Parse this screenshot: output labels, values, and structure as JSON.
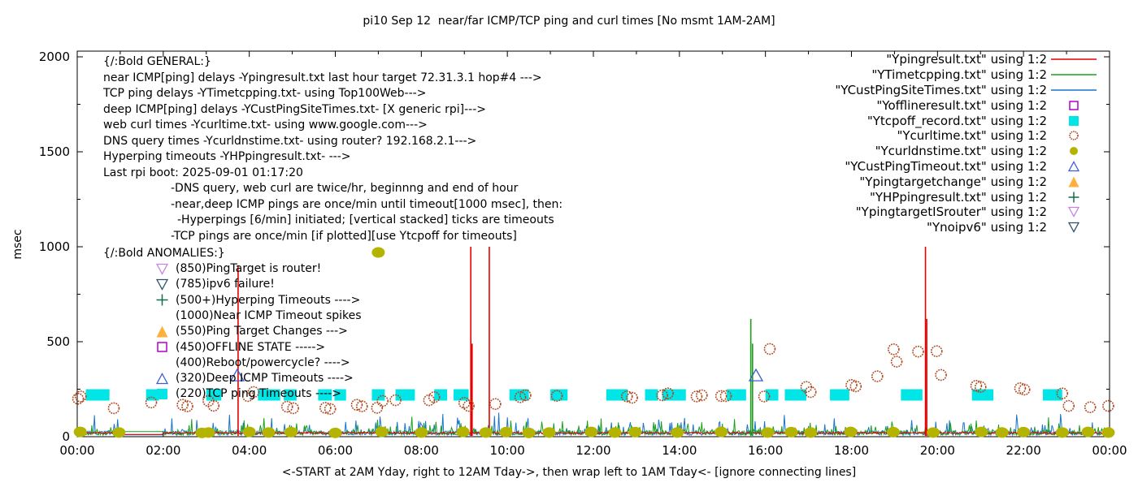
{
  "title": "pi10 Sep 12  near/far ICMP/TCP ping and curl times [No msmt 1AM-2AM]",
  "y_axis": {
    "label": "msec",
    "ticks": [
      0,
      500,
      1000,
      1500,
      2000
    ],
    "minor_step": 250,
    "max": 2000
  },
  "x_axis": {
    "label": "<-START at 2AM Yday, right to 12AM Tday->, then wrap left to 1AM Tday<- [ignore connecting lines]",
    "tick_labels": [
      "00:00",
      "02:00",
      "04:00",
      "06:00",
      "08:00",
      "10:00",
      "12:00",
      "14:00",
      "16:00",
      "18:00",
      "20:00",
      "22:00",
      "00:00"
    ],
    "hours": 24
  },
  "colors": {
    "near_icmp": "#e60000",
    "tcp_ping": "#1ca01c",
    "deep_icmp": "#1874cd",
    "offline": "#b000c8",
    "tcpoff": "#00e6e6",
    "curl": "#b0471d",
    "dns": "#b4b400",
    "deep_timeout": "#3c5ed2",
    "target_change": "#fdb13c",
    "hyperping": "#166b4a",
    "is_router": "#c382ea",
    "noipv6": "#30506a",
    "axis": "#000000"
  },
  "legend": [
    {
      "label": "\"Ypingresult.txt\" using 1:2",
      "marker": "line",
      "color": "#e60000"
    },
    {
      "label": "\"YTimetcpping.txt\" using 1:2",
      "marker": "line",
      "color": "#1ca01c"
    },
    {
      "label": "\"YCustPingSiteTimes.txt\" using 1:2",
      "marker": "line",
      "color": "#1874cd"
    },
    {
      "label": "\"Yofflineresult.txt\" using 1:2",
      "marker": "square-open",
      "color": "#b000c8"
    },
    {
      "label": "\"Ytcpoff_record.txt\" using 1:2",
      "marker": "square-filled",
      "color": "#00e6e6"
    },
    {
      "label": "\"Ycurltime.txt\" using 1:2",
      "marker": "circle-open",
      "color": "#b0471d"
    },
    {
      "label": "\"Ycurldnstime.txt\" using 1:2",
      "marker": "circle-filled",
      "color": "#b4b400"
    },
    {
      "label": "\"YCustPingTimeout.txt\" using 1:2",
      "marker": "tri-up-open",
      "color": "#3c5ed2"
    },
    {
      "label": "\"Ypingtargetchange\" using 1:2",
      "marker": "tri-up-filled",
      "color": "#fdb13c"
    },
    {
      "label": "\"YHPpingresult.txt\" using 1:2",
      "marker": "plus",
      "color": "#166b4a"
    },
    {
      "label": "\"YpingtargetISrouter\" using 1:2",
      "marker": "tri-down-open",
      "color": "#c382ea"
    },
    {
      "label": "\"Ynoipv6\" using 1:2",
      "marker": "tri-down-open",
      "color": "#30506a"
    }
  ],
  "general_block": {
    "lines": [
      {
        "text": "{/:Bold GENERAL:}",
        "indent": 0
      },
      {
        "text": "near ICMP[ping] delays -Ypingresult.txt last hour target 72.31.3.1 hop#4 --->",
        "indent": 0
      },
      {
        "text": "TCP ping delays -YTimetcpping.txt- using Top100Web--->",
        "indent": 0
      },
      {
        "text": "deep ICMP[ping] delays -YCustPingSiteTimes.txt- [X generic rpi]--->",
        "indent": 0
      },
      {
        "text": "web curl times -Ycurltime.txt- using www.google.com--->",
        "indent": 0
      },
      {
        "text": "DNS query times -Ycurldnstime.txt- using router? 192.168.2.1--->",
        "indent": 0
      },
      {
        "text": "Hyperping timeouts -YHPpingresult.txt- --->",
        "indent": 0
      },
      {
        "text": "Last rpi boot: 2025-09-01 01:17:20",
        "indent": 0
      },
      {
        "text": "-DNS query, web curl are twice/hr, beginnng and end of hour",
        "indent": 1
      },
      {
        "text": "-near,deep ICMP pings are once/min until timeout[1000 msec], then:",
        "indent": 1
      },
      {
        "text": "-Hyperpings [6/min] initiated; [vertical stacked] ticks are timeouts",
        "indent": 2
      },
      {
        "text": "-TCP pings are once/min [if plotted][use Ytcpoff for timeouts]",
        "indent": 1
      }
    ]
  },
  "anomalies_block": {
    "header": "{/:Bold ANOMALIES:}",
    "lines": [
      {
        "marker": "tri-down-open",
        "color": "#c382ea",
        "text": "(850)PingTarget is router!"
      },
      {
        "marker": "tri-down-open",
        "color": "#30506a",
        "text": "(785)ipv6 failure!"
      },
      {
        "marker": "plus",
        "color": "#166b4a",
        "text": "(500+)Hyperping Timeouts ---->"
      },
      {
        "marker": null,
        "color": null,
        "text": "(1000)Near ICMP Timeout spikes"
      },
      {
        "marker": "tri-up-filled",
        "color": "#fdb13c",
        "text": "(550)Ping Target Changes --->"
      },
      {
        "marker": "square-open",
        "color": "#b000c8",
        "text": "(450)OFFLINE STATE ----->"
      },
      {
        "marker": null,
        "color": null,
        "text": "(400)Reboot/powercycle? ---->"
      },
      {
        "marker": "tri-up-open",
        "color": "#3c5ed2",
        "text": "(320)Deep ICMP Timeouts ---->"
      },
      {
        "marker": "square-filled",
        "color": "#00e6e6",
        "text": "(220)TCP ping Timeouts ---->"
      }
    ]
  },
  "chart_data": {
    "type": "line",
    "title": "pi10 Sep 12  near/far ICMP/TCP ping and curl times [No msmt 1AM-2AM]",
    "xlabel": "<-START at 2AM Yday, right to 12AM Tday->, then wrap left to 1AM Tday<- [ignore connecting lines]",
    "ylabel": "msec",
    "xlim_hours": [
      0,
      24
    ],
    "ylim": [
      0,
      2000
    ],
    "grid": false,
    "legend_position": "top-right",
    "no_measurement_window_hours": [
      1,
      2
    ],
    "series": [
      {
        "name": "Ypingresult.txt",
        "type": "noisy-line",
        "color": "#e60000",
        "baseline_msec": 15,
        "noise_amp": 9,
        "burst_prob": 0.0,
        "flat_value": 12,
        "seed": 11,
        "spikes": [
          [
            3.74,
            900
          ],
          [
            9.15,
            1000
          ],
          [
            9.18,
            490
          ],
          [
            9.58,
            1000
          ],
          [
            19.72,
            1000
          ],
          [
            19.75,
            620
          ]
        ]
      },
      {
        "name": "YTimetcpping.txt",
        "type": "noisy-line",
        "color": "#1ca01c",
        "baseline_msec": 8,
        "noise_amp": 105,
        "burst_prob": 0.28,
        "flat_value": 27,
        "seed": 22,
        "spikes": [
          [
            15.66,
            620
          ],
          [
            15.7,
            490
          ]
        ]
      },
      {
        "name": "YCustPingSiteTimes.txt",
        "type": "noisy-line",
        "color": "#1874cd",
        "baseline_msec": 8,
        "noise_amp": 130,
        "burst_prob": 0.22,
        "flat_value": 10,
        "seed": 33,
        "spikes": []
      },
      {
        "name": "Ytcpoff_record.txt",
        "type": "bars",
        "color": "#00e6e6",
        "value_msec": 220,
        "intervals_hours": [
          [
            0.2,
            0.75
          ],
          [
            1.6,
            1.9
          ],
          [
            3.0,
            3.35
          ],
          [
            4.2,
            4.72
          ],
          [
            4.8,
            5.1
          ],
          [
            5.6,
            5.92
          ],
          [
            5.98,
            6.25
          ],
          [
            6.85,
            7.15
          ],
          [
            7.4,
            7.85
          ],
          [
            8.3,
            8.6
          ],
          [
            8.75,
            9.1
          ],
          [
            10.05,
            10.5
          ],
          [
            11.0,
            11.4
          ],
          [
            12.3,
            12.8
          ],
          [
            13.2,
            13.5
          ],
          [
            13.6,
            14.15
          ],
          [
            15.1,
            15.55
          ],
          [
            16.0,
            16.3
          ],
          [
            16.45,
            16.95
          ],
          [
            17.5,
            17.95
          ],
          [
            19.15,
            19.65
          ],
          [
            20.8,
            21.3
          ],
          [
            22.45,
            22.9
          ]
        ]
      },
      {
        "name": "Ycurltime.txt",
        "type": "scatter",
        "marker": "circle-open",
        "color": "#b0471d",
        "points": [
          [
            0.02,
            200
          ],
          [
            0.08,
            212
          ],
          [
            0.85,
            150
          ],
          [
            1.72,
            180
          ],
          [
            2.45,
            168
          ],
          [
            2.56,
            160
          ],
          [
            3.05,
            188
          ],
          [
            3.17,
            163
          ],
          [
            3.97,
            214
          ],
          [
            4.1,
            235
          ],
          [
            4.88,
            158
          ],
          [
            5.02,
            150
          ],
          [
            5.77,
            152
          ],
          [
            5.88,
            146
          ],
          [
            6.5,
            168
          ],
          [
            6.62,
            160
          ],
          [
            6.97,
            152
          ],
          [
            7.1,
            188
          ],
          [
            7.4,
            192
          ],
          [
            8.18,
            192
          ],
          [
            8.3,
            208
          ],
          [
            9.0,
            178
          ],
          [
            9.1,
            162
          ],
          [
            9.72,
            172
          ],
          [
            10.3,
            208
          ],
          [
            10.42,
            218
          ],
          [
            11.15,
            215
          ],
          [
            12.78,
            212
          ],
          [
            12.9,
            205
          ],
          [
            13.6,
            218
          ],
          [
            13.73,
            228
          ],
          [
            14.4,
            212
          ],
          [
            14.52,
            218
          ],
          [
            14.97,
            214
          ],
          [
            15.08,
            214
          ],
          [
            15.97,
            212
          ],
          [
            16.1,
            462
          ],
          [
            16.95,
            262
          ],
          [
            17.05,
            235
          ],
          [
            18.0,
            272
          ],
          [
            18.1,
            265
          ],
          [
            18.6,
            318
          ],
          [
            18.98,
            460
          ],
          [
            19.05,
            395
          ],
          [
            19.55,
            448
          ],
          [
            19.98,
            450
          ],
          [
            20.08,
            325
          ],
          [
            20.9,
            268
          ],
          [
            21.0,
            262
          ],
          [
            21.92,
            255
          ],
          [
            22.02,
            248
          ],
          [
            22.9,
            228
          ],
          [
            23.05,
            162
          ],
          [
            23.55,
            155
          ],
          [
            23.97,
            162
          ]
        ]
      },
      {
        "name": "Ycurldnstime.txt",
        "type": "scatter",
        "marker": "circle-filled",
        "color": "#b4b400",
        "points": [
          [
            0.07,
            25
          ],
          [
            0.97,
            22
          ],
          [
            2.9,
            20
          ],
          [
            3.05,
            22
          ],
          [
            4.0,
            25
          ],
          [
            4.45,
            22
          ],
          [
            4.97,
            24
          ],
          [
            6.0,
            20
          ],
          [
            7.0,
            970
          ],
          [
            7.08,
            25
          ],
          [
            8.0,
            22
          ],
          [
            8.97,
            25
          ],
          [
            9.5,
            22
          ],
          [
            9.97,
            24
          ],
          [
            10.5,
            20
          ],
          [
            10.97,
            22
          ],
          [
            11.95,
            25
          ],
          [
            12.5,
            22
          ],
          [
            12.97,
            24
          ],
          [
            13.95,
            22
          ],
          [
            14.97,
            25
          ],
          [
            16.05,
            22
          ],
          [
            16.6,
            24
          ],
          [
            17.05,
            22
          ],
          [
            17.98,
            25
          ],
          [
            18.97,
            24
          ],
          [
            19.9,
            22
          ],
          [
            21.02,
            25
          ],
          [
            21.5,
            22
          ],
          [
            22.0,
            24
          ],
          [
            22.9,
            22
          ],
          [
            23.5,
            25
          ],
          [
            23.97,
            22
          ]
        ]
      },
      {
        "name": "YCustPingTimeout.txt",
        "type": "scatter",
        "marker": "tri-up-open",
        "color": "#3c5ed2",
        "points": [
          [
            3.72,
            320
          ],
          [
            15.78,
            320
          ]
        ]
      }
    ]
  }
}
